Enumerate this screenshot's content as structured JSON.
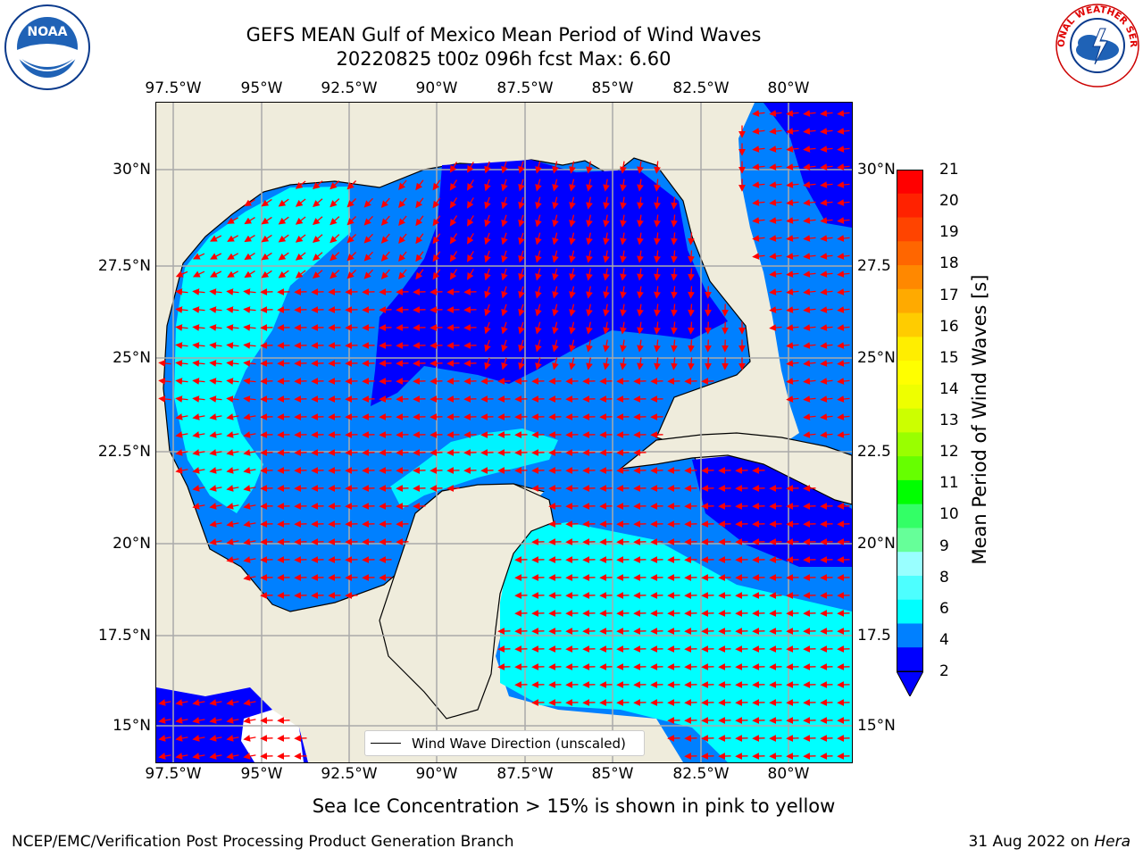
{
  "title": {
    "line1": "GEFS MEAN Gulf of Mexico Mean Period of Wind Waves",
    "line2": "20220825 t00z 096h fcst   Max: 6.60"
  },
  "map": {
    "lon_ticks": [
      "97.5°W",
      "95°W",
      "92.5°W",
      "90°W",
      "87.5°W",
      "85°W",
      "82.5°W",
      "80°W"
    ],
    "lat_ticks_left": [
      "30°N",
      "27.5°N",
      "25°N",
      "22.5°N",
      "20°N",
      "17.5°N",
      "15°N"
    ],
    "lat_ticks_right": [
      "30°N",
      "27.5",
      "25°N",
      "22.5",
      "20°N",
      "17.5",
      "15°N"
    ],
    "land_color": "#efecdc",
    "arrow_color": "#ff0000"
  },
  "legend": {
    "label": "Wind Wave Direction (unscaled)"
  },
  "colorbar": {
    "label": "Mean Period of Wind Waves [s]",
    "ticks": [
      "2",
      "4",
      "6",
      "8",
      "9",
      "10",
      "11",
      "12",
      "13",
      "14",
      "15",
      "16",
      "17",
      "18",
      "19",
      "20",
      "21"
    ],
    "colors": [
      "#0000ff",
      "#0080ff",
      "#00ffff",
      "#4dffff",
      "#99ffff",
      "#66ff99",
      "#33ff66",
      "#00ff00",
      "#66ff00",
      "#99ff00",
      "#ccff00",
      "#eeff00",
      "#ffff00",
      "#ffee00",
      "#ffcc00",
      "#ffaa00",
      "#ff8800",
      "#ff6600",
      "#ff4400",
      "#ff2200",
      "#ff0000"
    ]
  },
  "subtitle": "Sea Ice Concentration > 15% is shown in pink to yellow",
  "footer": {
    "left": "NCEP/EMC/Verification Post Processing Product Generation Branch",
    "right_date": "31 Aug 2022 on ",
    "right_host": "Hera"
  },
  "logos": {
    "noaa": "NOAA",
    "nws": "NATIONAL WEATHER SERVICE"
  }
}
